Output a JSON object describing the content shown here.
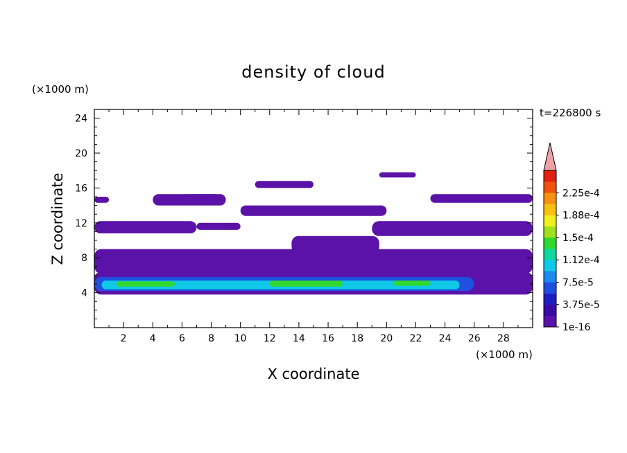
{
  "chart_data": {
    "type": "heatmap",
    "title": "density of cloud",
    "xlabel": "X coordinate",
    "ylabel": "Z coordinate",
    "x_unit": "(×1000 m)",
    "y_unit": "(×1000 m)",
    "time_label": "t=226800 s",
    "xlim": [
      0,
      30
    ],
    "ylim": [
      0,
      25
    ],
    "x_ticks": [
      2,
      4,
      6,
      8,
      10,
      12,
      14,
      16,
      18,
      20,
      22,
      24,
      26,
      28
    ],
    "y_ticks": [
      4,
      8,
      12,
      16,
      20,
      24
    ],
    "colorbar": {
      "labels": [
        "1e-16",
        "3.75e-5",
        "7.5e-5",
        "1.12e-4",
        "1.5e-4",
        "1.88e-4",
        "2.25e-4"
      ],
      "colors": [
        "#5a12a8",
        "#3a0aa8",
        "#1f1fc0",
        "#1f50e0",
        "#1a8af0",
        "#10c8e8",
        "#10d8a0",
        "#30d830",
        "#a0e020",
        "#f0f020",
        "#f8c010",
        "#f89010",
        "#f05010",
        "#e02010"
      ],
      "extend_color": "#f0a0a8"
    },
    "regions": [
      {
        "level": "1e-16",
        "x": [
          0,
          30
        ],
        "z": [
          3.8,
          6.4
        ]
      },
      {
        "level": "3.75e-5",
        "x": [
          0,
          26
        ],
        "z": [
          4.2,
          5.8
        ]
      },
      {
        "level": "7.5e-5",
        "x": [
          0.5,
          25
        ],
        "z": [
          4.4,
          5.4
        ]
      },
      {
        "level": "1.12e-4",
        "x": [
          1.5,
          5.5
        ],
        "z": [
          4.7,
          5.3
        ]
      },
      {
        "level": "1.12e-4",
        "x": [
          12,
          17
        ],
        "z": [
          4.7,
          5.4
        ]
      },
      {
        "level": "1.12e-4",
        "x": [
          20.5,
          23
        ],
        "z": [
          4.8,
          5.4
        ]
      },
      {
        "level": "1e-16",
        "x": [
          0,
          30
        ],
        "z": [
          6.2,
          9
        ]
      },
      {
        "level": "1e-16",
        "x": [
          0,
          7
        ],
        "z": [
          10.8,
          12.2
        ]
      },
      {
        "level": "1e-16",
        "x": [
          7,
          10
        ],
        "z": [
          11.2,
          12
        ]
      },
      {
        "level": "1e-16",
        "x": [
          13.5,
          19.5
        ],
        "z": [
          8.5,
          10.5
        ]
      },
      {
        "level": "1e-16",
        "x": [
          19,
          30
        ],
        "z": [
          10.5,
          12.2
        ]
      },
      {
        "level": "1e-16",
        "x": [
          4,
          9
        ],
        "z": [
          14,
          15.3
        ]
      },
      {
        "level": "1e-16",
        "x": [
          10,
          20
        ],
        "z": [
          12.8,
          14
        ]
      },
      {
        "level": "1e-16",
        "x": [
          0,
          1
        ],
        "z": [
          14.3,
          15
        ]
      },
      {
        "level": "1e-16",
        "x": [
          6,
          8.5
        ],
        "z": [
          14.5,
          15.3
        ]
      },
      {
        "level": "1e-16",
        "x": [
          23,
          30
        ],
        "z": [
          14.3,
          15.3
        ]
      },
      {
        "level": "1e-16",
        "x": [
          11,
          15
        ],
        "z": [
          16,
          16.8
        ]
      },
      {
        "level": "1e-16",
        "x": [
          19.5,
          22
        ],
        "z": [
          17.2,
          17.8
        ]
      }
    ]
  }
}
